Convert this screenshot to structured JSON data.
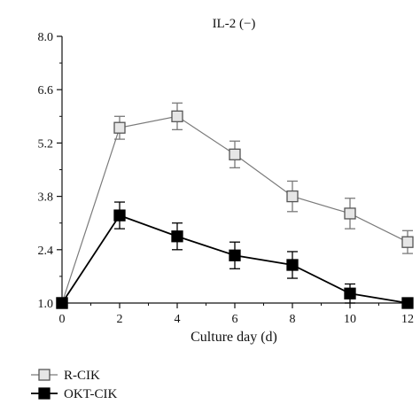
{
  "chart_data": {
    "type": "line",
    "title": "IL-2 (−)",
    "xlabel": "Culture day (d)",
    "ylabel": "",
    "x": [
      0,
      2,
      4,
      6,
      8,
      10,
      12
    ],
    "xticks": [
      "0",
      "2",
      "4",
      "6",
      "8",
      "10",
      "12"
    ],
    "yticks": [
      "1.0",
      "2.4",
      "3.8",
      "5.2",
      "6.6",
      "8.0"
    ],
    "xlim": [
      0,
      12
    ],
    "ylim": [
      1.0,
      8.0
    ],
    "grid": false,
    "legend_position": "bottom-left",
    "series": [
      {
        "name": "R-CIK",
        "marker": "square-open",
        "color": "#7a7a7a",
        "fill": "#e6e6e6",
        "values": [
          1.0,
          5.6,
          5.9,
          4.9,
          3.8,
          3.35,
          2.6
        ],
        "errors": [
          0.0,
          0.3,
          0.35,
          0.35,
          0.4,
          0.4,
          0.3
        ]
      },
      {
        "name": "OKT-CIK",
        "marker": "square-filled",
        "color": "#000000",
        "fill": "#000000",
        "values": [
          1.0,
          3.3,
          2.75,
          2.25,
          2.0,
          1.25,
          1.0
        ],
        "errors": [
          0.0,
          0.35,
          0.35,
          0.35,
          0.35,
          0.25,
          0.0
        ]
      }
    ]
  }
}
